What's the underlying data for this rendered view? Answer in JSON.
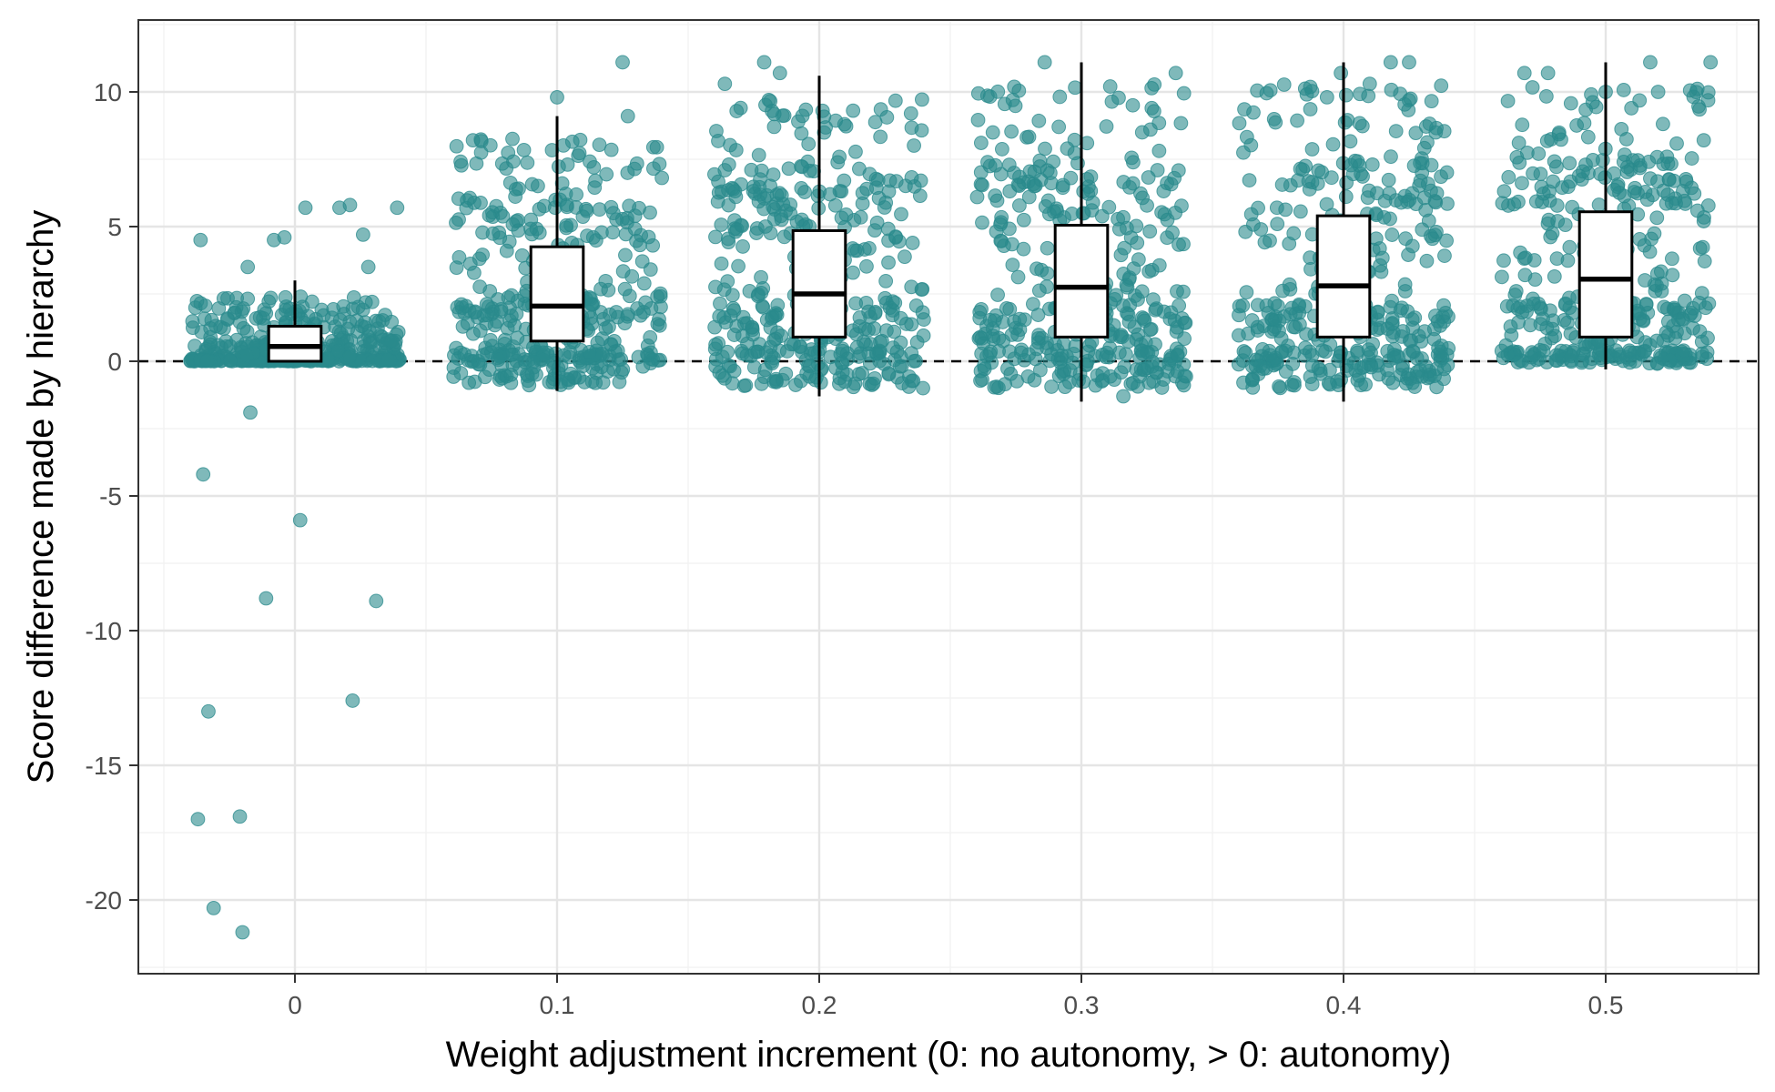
{
  "chart_data": {
    "type": "box+jitter-scatter",
    "title": "",
    "xlabel": "Weight adjustment increment (0: no autonomy, > 0: autonomy)",
    "ylabel": "Score difference made by hierarchy",
    "x_ticks": [
      "0",
      "0.1",
      "0.2",
      "0.3",
      "0.4",
      "0.5"
    ],
    "y_ticks": [
      "-20",
      "-15",
      "-10",
      "-5",
      "0",
      "5",
      "10"
    ],
    "xlim": [
      -0.06,
      0.56
    ],
    "ylim": [
      -22.8,
      12.6
    ],
    "grid": true,
    "reference_line": {
      "y": 0,
      "style": "dashed"
    },
    "point_color": "#2a8a8c",
    "point_count_per_group": 400,
    "jitter_width": 0.04,
    "groups": [
      {
        "x": 0.0,
        "q1": 0.0,
        "median": 0.55,
        "q3": 1.3,
        "whisker_low": 0.0,
        "whisker_high": 3.0,
        "outliers": [
          [
            -0.036,
            4.5
          ],
          [
            -0.018,
            3.5
          ],
          [
            -0.008,
            4.5
          ],
          [
            -0.004,
            4.6
          ],
          [
            0.004,
            5.7
          ],
          [
            0.017,
            5.7
          ],
          [
            0.021,
            5.8
          ],
          [
            0.026,
            4.7
          ],
          [
            0.039,
            5.7
          ],
          [
            0.028,
            3.5
          ],
          [
            -0.017,
            -1.9
          ],
          [
            -0.035,
            -4.2
          ],
          [
            0.002,
            -5.9
          ],
          [
            -0.011,
            -8.8
          ],
          [
            0.031,
            -8.9
          ],
          [
            -0.033,
            -13.0
          ],
          [
            0.022,
            -12.6
          ],
          [
            -0.037,
            -17.0
          ],
          [
            -0.021,
            -16.9
          ],
          [
            -0.031,
            -20.3
          ],
          [
            -0.02,
            -21.2
          ]
        ]
      },
      {
        "x": 0.1,
        "q1": 0.75,
        "median": 2.05,
        "q3": 4.25,
        "whisker_low": -1.1,
        "whisker_high": 9.1,
        "outliers": [
          [
            0.1,
            9.8
          ],
          [
            0.125,
            11.1
          ],
          [
            0.127,
            9.1
          ],
          [
            0.114,
            7.2
          ]
        ]
      },
      {
        "x": 0.2,
        "q1": 0.9,
        "median": 2.5,
        "q3": 4.85,
        "whisker_low": -1.3,
        "whisker_high": 10.6,
        "outliers": [
          [
            0.179,
            11.1
          ],
          [
            0.185,
            10.7
          ],
          [
            0.164,
            10.3
          ],
          [
            0.235,
            9.2
          ],
          [
            0.192,
            8.9
          ]
        ]
      },
      {
        "x": 0.3,
        "q1": 0.9,
        "median": 2.75,
        "q3": 5.05,
        "whisker_low": -1.5,
        "whisker_high": 11.1,
        "outliers": [
          [
            0.286,
            11.1
          ],
          [
            0.336,
            10.7
          ],
          [
            0.311,
            10.2
          ],
          [
            0.316,
            -1.3
          ]
        ]
      },
      {
        "x": 0.4,
        "q1": 0.9,
        "median": 2.8,
        "q3": 5.4,
        "whisker_low": -1.5,
        "whisker_high": 11.1,
        "outliers": [
          [
            0.418,
            11.1
          ],
          [
            0.425,
            11.1
          ],
          [
            0.399,
            10.7
          ],
          [
            0.41,
            10.3
          ]
        ]
      },
      {
        "x": 0.5,
        "q1": 0.9,
        "median": 3.05,
        "q3": 5.55,
        "whisker_low": -0.3,
        "whisker_high": 11.1,
        "outliers": [
          [
            0.517,
            11.1
          ],
          [
            0.54,
            11.1
          ],
          [
            0.478,
            10.7
          ],
          [
            0.469,
            10.7
          ],
          [
            0.5,
            10.0
          ],
          [
            0.52,
            10.0
          ]
        ]
      }
    ]
  }
}
